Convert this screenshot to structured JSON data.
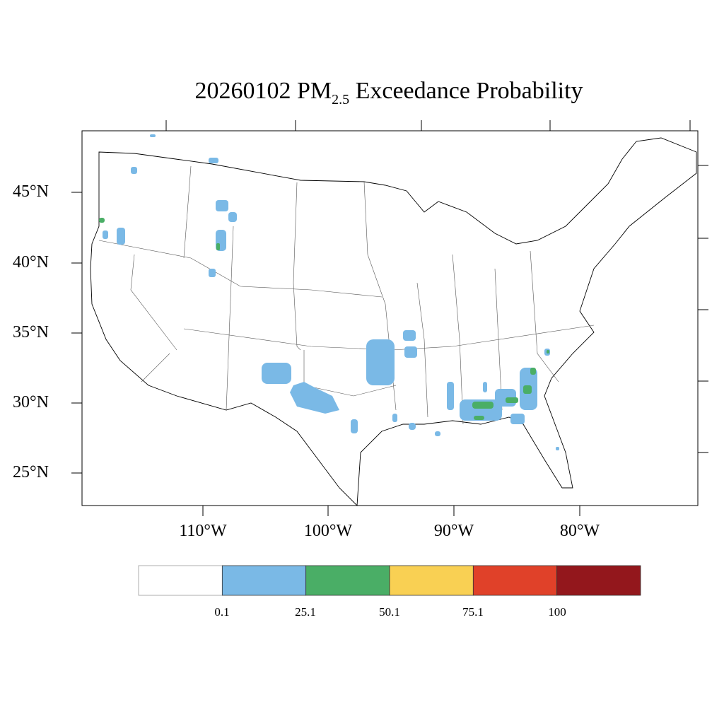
{
  "title": {
    "date": "20260102",
    "pollutant": "PM",
    "subscript": "2.5",
    "suffix": "Exceedance Probability"
  },
  "axes": {
    "lat_labels": [
      "45°N",
      "40°N",
      "35°N",
      "30°N",
      "25°N"
    ],
    "lon_labels": [
      "110°W",
      "100°W",
      "90°W",
      "80°W"
    ]
  },
  "legend": {
    "colors": [
      "#ffffff",
      "#7ab9e6",
      "#4aae66",
      "#f9d053",
      "#e04129",
      "#93171c"
    ],
    "labels": [
      "0.1",
      "25.1",
      "50.1",
      "75.1",
      "100"
    ]
  }
}
